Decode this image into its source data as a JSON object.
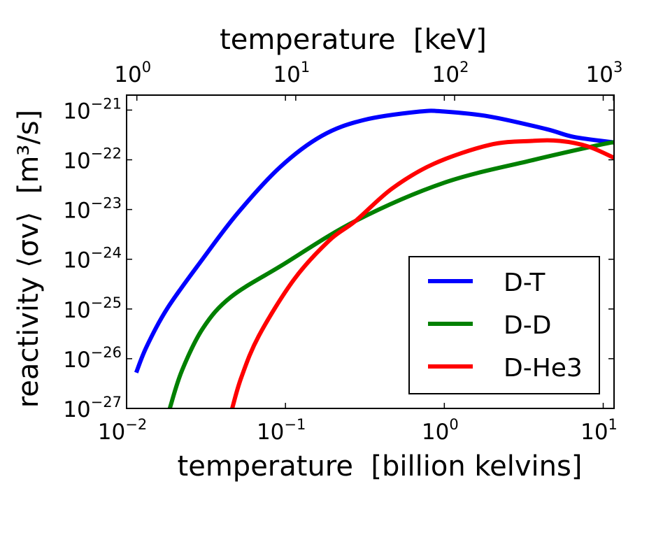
{
  "chart_data": {
    "type": "line",
    "title": "",
    "xlabel": "temperature  [billion kelvins]",
    "xlabel_top": "temperature  [keV]",
    "ylabel": "reactivity ⟨σv⟩  [m³/s]",
    "xscale": "log",
    "yscale": "log",
    "xlim": [
      0.01,
      11.7
    ],
    "ylim": [
      1e-27,
      2e-21
    ],
    "x_ticks": [
      {
        "base": "10",
        "exp": "−2",
        "value": 0.01
      },
      {
        "base": "10",
        "exp": "−1",
        "value": 0.1
      },
      {
        "base": "10",
        "exp": "0",
        "value": 1
      },
      {
        "base": "10",
        "exp": "1",
        "value": 10
      }
    ],
    "x_top_ticks_keV": [
      {
        "base": "10",
        "exp": "0",
        "value": 1
      },
      {
        "base": "10",
        "exp": "1",
        "value": 10
      },
      {
        "base": "10",
        "exp": "2",
        "value": 100
      },
      {
        "base": "10",
        "exp": "3",
        "value": 1000
      }
    ],
    "kev_per_billion_kelvin": 86.17,
    "y_ticks": [
      {
        "base": "10",
        "exp": "−21",
        "value": -21
      },
      {
        "base": "10",
        "exp": "−22",
        "value": -22
      },
      {
        "base": "10",
        "exp": "−23",
        "value": -23
      },
      {
        "base": "10",
        "exp": "−24",
        "value": -24
      },
      {
        "base": "10",
        "exp": "−25",
        "value": -25
      },
      {
        "base": "10",
        "exp": "−26",
        "value": -26
      },
      {
        "base": "10",
        "exp": "−27",
        "value": -27
      }
    ],
    "grid": false,
    "legend_position": "lower-right",
    "series": [
      {
        "name": "D-T",
        "color": "#0000ff",
        "x": [
          0.0115,
          0.0134,
          0.0182,
          0.0302,
          0.0501,
          0.0923,
          0.169,
          0.311,
          0.7,
          1.0,
          1.93,
          4.36,
          6.53,
          11.7
        ],
        "log10_y": [
          -26.28,
          -25.75,
          -24.97,
          -23.99,
          -23.07,
          -22.15,
          -21.52,
          -21.2,
          -21.03,
          -21.03,
          -21.13,
          -21.38,
          -21.54,
          -21.65
        ]
      },
      {
        "name": "D-D",
        "color": "#008000",
        "x": [
          0.0187,
          0.0223,
          0.0302,
          0.0453,
          0.094,
          0.276,
          1.0,
          3.56,
          9.8,
          11.7
        ],
        "log10_y": [
          -27.0,
          -26.24,
          -25.39,
          -24.76,
          -24.13,
          -23.23,
          -22.46,
          -22.01,
          -21.69,
          -21.65
        ]
      },
      {
        "name": "D-He3",
        "color": "#ff0000",
        "x": [
          0.0462,
          0.0527,
          0.068,
          0.113,
          0.1875,
          0.276,
          0.468,
          0.859,
          1.93,
          3.56,
          5.33,
          8.0,
          11.7
        ],
        "log10_y": [
          -27.0,
          -26.38,
          -25.54,
          -24.41,
          -23.63,
          -23.23,
          -22.58,
          -22.08,
          -21.7,
          -21.62,
          -21.62,
          -21.73,
          -21.96
        ]
      }
    ]
  }
}
